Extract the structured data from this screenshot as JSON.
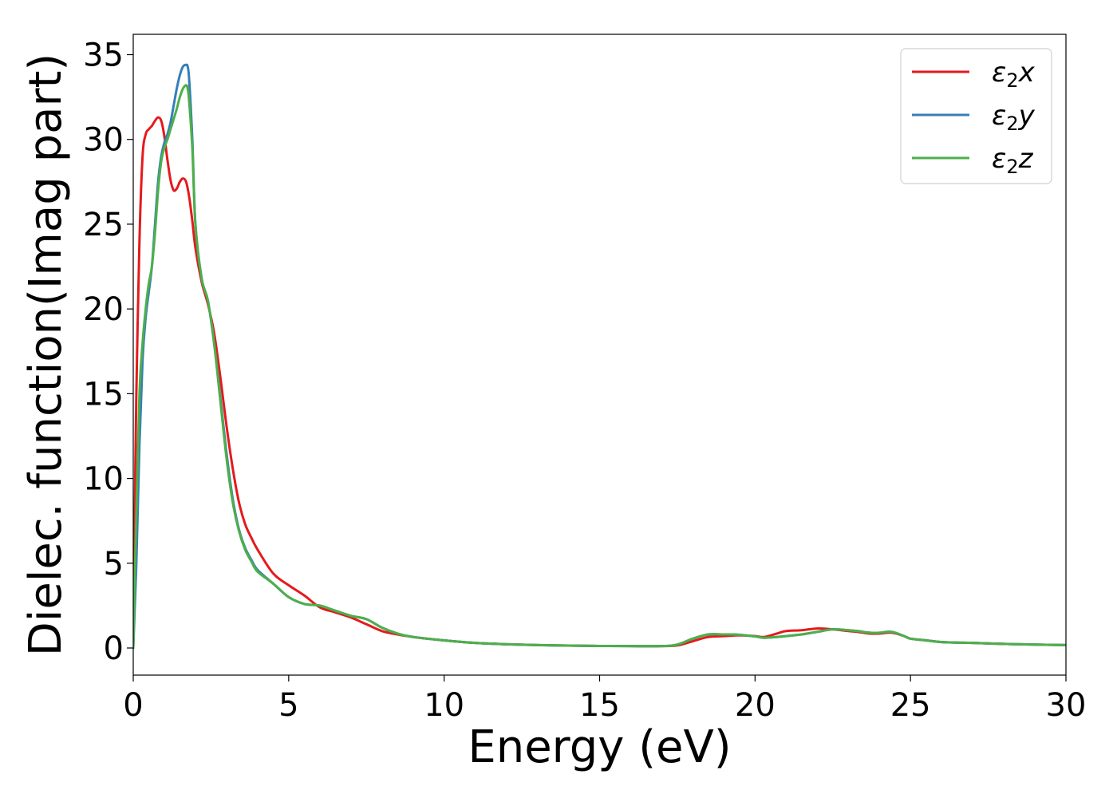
{
  "chart_data": {
    "type": "line",
    "xlabel": "Energy (eV)",
    "ylabel": "Dielec. function(Imag part)",
    "xlim": [
      0,
      30
    ],
    "ylim": [
      -1.6,
      36.2
    ],
    "xticks": [
      0,
      5,
      10,
      15,
      20,
      25,
      30
    ],
    "yticks": [
      0,
      5,
      10,
      15,
      20,
      25,
      30,
      35
    ],
    "grid": false,
    "legend": "top-right",
    "series": [
      {
        "name": "ε2x",
        "symbol": "ε",
        "sub": "2",
        "axis": "x",
        "color": "#e41a1c",
        "x": [
          0,
          0.05,
          0.1,
          0.2,
          0.3,
          0.4,
          0.5,
          0.6,
          0.7,
          0.8,
          0.9,
          1.0,
          1.1,
          1.2,
          1.3,
          1.4,
          1.5,
          1.6,
          1.7,
          1.8,
          1.9,
          2.0,
          2.2,
          2.4,
          2.6,
          2.8,
          3.0,
          3.2,
          3.4,
          3.6,
          3.8,
          4.0,
          4.5,
          5.0,
          5.5,
          6.0,
          6.5,
          7.0,
          7.5,
          8.0,
          8.5,
          9.0,
          10,
          11,
          12,
          13,
          14,
          15,
          16,
          17,
          17.5,
          18.0,
          18.5,
          19.0,
          19.5,
          20.0,
          20.3,
          20.7,
          21.0,
          21.5,
          22.0,
          22.5,
          23.0,
          23.3,
          23.7,
          24.0,
          24.4,
          24.8,
          25.0,
          25.5,
          26.0,
          26.5,
          27,
          28,
          29,
          30
        ],
        "y": [
          0,
          8,
          15,
          24,
          29,
          30.3,
          30.6,
          30.8,
          31.1,
          31.3,
          31.1,
          30.2,
          28.8,
          27.6,
          27.0,
          27.1,
          27.5,
          27.7,
          27.5,
          26.6,
          25.2,
          23.6,
          21.6,
          20.3,
          18.6,
          16.0,
          13.1,
          10.6,
          8.6,
          7.3,
          6.5,
          5.8,
          4.4,
          3.7,
          3.1,
          2.4,
          2.1,
          1.8,
          1.4,
          1.0,
          0.8,
          0.65,
          0.45,
          0.3,
          0.22,
          0.17,
          0.14,
          0.12,
          0.11,
          0.11,
          0.15,
          0.4,
          0.65,
          0.7,
          0.75,
          0.7,
          0.65,
          0.85,
          1.0,
          1.05,
          1.15,
          1.1,
          1.0,
          0.95,
          0.85,
          0.85,
          0.9,
          0.7,
          0.55,
          0.45,
          0.35,
          0.32,
          0.3,
          0.24,
          0.2,
          0.17
        ]
      },
      {
        "name": "ε2y",
        "symbol": "ε",
        "sub": "2",
        "axis": "y",
        "color": "#377eb8",
        "x": [
          0,
          0.1,
          0.2,
          0.3,
          0.4,
          0.5,
          0.6,
          0.7,
          0.8,
          0.9,
          1.0,
          1.1,
          1.2,
          1.3,
          1.4,
          1.5,
          1.6,
          1.7,
          1.75,
          1.8,
          1.9,
          2.0,
          2.2,
          2.4,
          2.6,
          2.8,
          3.0,
          3.2,
          3.4,
          3.6,
          3.8,
          4.0,
          4.5,
          5.0,
          5.5,
          6.0,
          6.5,
          7.0,
          7.5,
          8.0,
          8.5,
          9.0,
          10,
          11,
          12,
          13,
          14,
          15,
          16,
          17,
          17.5,
          18.0,
          18.5,
          19.0,
          19.5,
          20.0,
          20.3,
          20.7,
          21.0,
          21.5,
          22.0,
          22.5,
          23.0,
          23.3,
          23.7,
          24.0,
          24.4,
          24.8,
          25.0,
          25.5,
          26.0,
          26.5,
          27,
          28,
          29,
          30
        ],
        "y": [
          0,
          5,
          12,
          17,
          19.5,
          21,
          22.5,
          25,
          27.5,
          29,
          29.8,
          30.3,
          31,
          32,
          33,
          33.8,
          34.3,
          34.4,
          34.3,
          33.5,
          30,
          25,
          21.8,
          20.5,
          18.0,
          14.8,
          11.5,
          8.8,
          7.0,
          5.9,
          5.2,
          4.6,
          3.8,
          3.0,
          2.6,
          2.5,
          2.2,
          1.9,
          1.7,
          1.2,
          0.85,
          0.65,
          0.45,
          0.3,
          0.22,
          0.17,
          0.14,
          0.12,
          0.11,
          0.11,
          0.2,
          0.55,
          0.8,
          0.8,
          0.78,
          0.68,
          0.6,
          0.65,
          0.7,
          0.8,
          0.95,
          1.1,
          1.05,
          1.0,
          0.9,
          0.9,
          0.95,
          0.7,
          0.55,
          0.45,
          0.35,
          0.32,
          0.3,
          0.24,
          0.2,
          0.17
        ]
      },
      {
        "name": "ε2z",
        "symbol": "ε",
        "sub": "2",
        "axis": "z",
        "color": "#4daf4a",
        "x": [
          0,
          0.1,
          0.2,
          0.3,
          0.4,
          0.5,
          0.6,
          0.7,
          0.8,
          0.9,
          1.0,
          1.1,
          1.2,
          1.3,
          1.4,
          1.5,
          1.6,
          1.7,
          1.75,
          1.8,
          1.9,
          2.0,
          2.2,
          2.4,
          2.6,
          2.8,
          3.0,
          3.2,
          3.4,
          3.6,
          3.8,
          4.0,
          4.5,
          5.0,
          5.5,
          6.0,
          6.5,
          7.0,
          7.5,
          8.0,
          8.5,
          9.0,
          10,
          11,
          12,
          13,
          14,
          15,
          16,
          17,
          17.5,
          18.0,
          18.5,
          19.0,
          19.5,
          20.0,
          20.3,
          20.7,
          21.0,
          21.5,
          22.0,
          22.5,
          23.0,
          23.3,
          23.7,
          24.0,
          24.4,
          24.8,
          25.0,
          25.5,
          26.0,
          26.5,
          27,
          28,
          29,
          30
        ],
        "y": [
          0,
          8,
          15,
          18,
          20,
          21.5,
          22.5,
          24.5,
          27,
          28.7,
          29.5,
          30,
          30.6,
          31.2,
          31.8,
          32.5,
          33,
          33.2,
          33.0,
          32.2,
          29.5,
          25,
          21.8,
          20.5,
          18.0,
          14.6,
          11.2,
          8.6,
          6.9,
          5.8,
          5.1,
          4.5,
          3.8,
          3.0,
          2.6,
          2.5,
          2.2,
          1.9,
          1.7,
          1.2,
          0.85,
          0.65,
          0.45,
          0.3,
          0.22,
          0.17,
          0.14,
          0.12,
          0.11,
          0.11,
          0.2,
          0.55,
          0.8,
          0.8,
          0.78,
          0.68,
          0.6,
          0.65,
          0.7,
          0.8,
          0.95,
          1.1,
          1.05,
          1.0,
          0.9,
          0.9,
          0.95,
          0.7,
          0.55,
          0.45,
          0.35,
          0.32,
          0.3,
          0.24,
          0.2,
          0.17
        ]
      }
    ]
  }
}
